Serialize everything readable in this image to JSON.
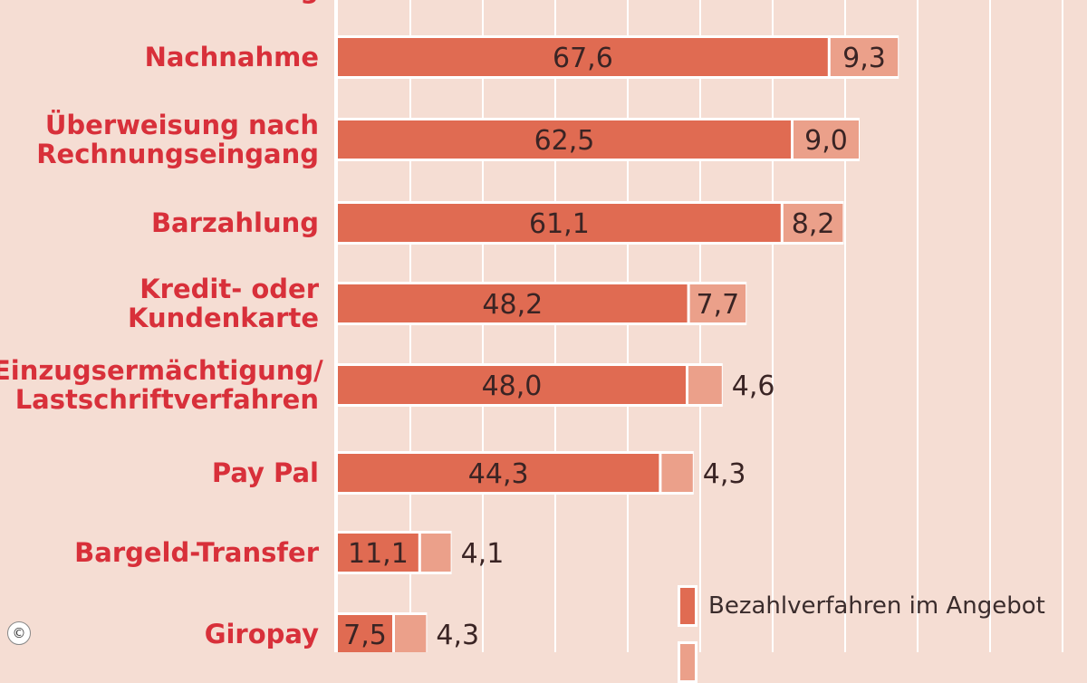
{
  "chart_data": {
    "type": "bar",
    "stacked": true,
    "orientation": "horizontal",
    "categories": [
      "Überweisung",
      "Nachnahme",
      "Überweisung nach\nRechnungseingang",
      "Barzahlung",
      "Kredit- oder\nKundenkarte",
      "Einzugsermächtigung/\nLastschriftverfahren",
      "Pay Pal",
      "Bargeld-Transfer",
      "Giropay"
    ],
    "series": [
      {
        "name": "Bezahlverfahren im Angebot",
        "color": "#e06b52",
        "values": [
          null,
          67.6,
          62.5,
          61.1,
          48.2,
          48.0,
          44.3,
          11.1,
          7.5
        ],
        "labels": [
          "",
          "67,6",
          "62,5",
          "61,1",
          "48,2",
          "48,0",
          "44,3",
          "11,1",
          "7,5"
        ]
      },
      {
        "color": "#eba08a",
        "values": [
          null,
          9.3,
          9.0,
          8.2,
          7.7,
          4.6,
          4.3,
          4.1,
          4.3
        ],
        "labels": [
          "",
          "9,3",
          "9,0",
          "8,2",
          "7,7",
          "4,6",
          "4,3",
          "4,1",
          "4,3"
        ]
      }
    ],
    "xlim": [
      0,
      100
    ],
    "grid": true,
    "legend_position": "bottom-right",
    "copyright_symbol": "©"
  }
}
